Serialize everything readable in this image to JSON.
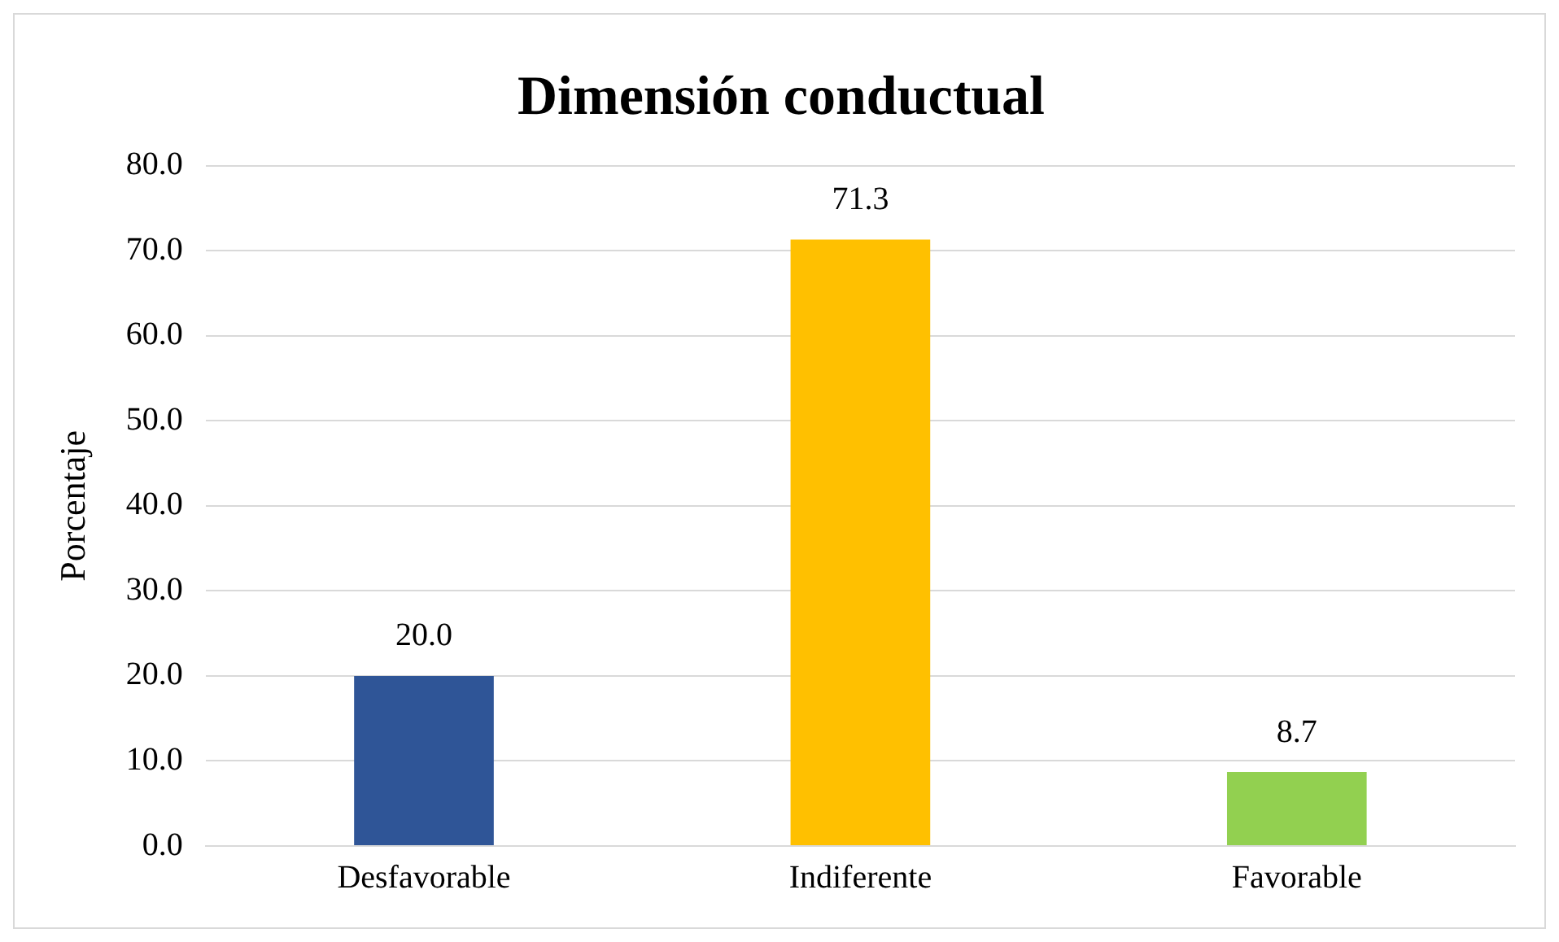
{
  "chart_data": {
    "type": "bar",
    "title": "Dimensión conductual",
    "ylabel": "Porcentaje",
    "categories": [
      "Desfavorable",
      "Indiferente",
      "Favorable"
    ],
    "values": [
      20.0,
      71.3,
      8.7
    ],
    "colors": [
      "#2f5597",
      "#ffc000",
      "#92d050"
    ],
    "value_labels": [
      "20.0",
      "71.3",
      "8.7"
    ],
    "ylim": [
      0,
      80
    ],
    "yticks": [
      {
        "value": 0,
        "label": "0.0"
      },
      {
        "value": 10,
        "label": "10.0"
      },
      {
        "value": 20,
        "label": "20.0"
      },
      {
        "value": 30,
        "label": "30.0"
      },
      {
        "value": 40,
        "label": "40.0"
      },
      {
        "value": 50,
        "label": "50.0"
      },
      {
        "value": 60,
        "label": "60.0"
      },
      {
        "value": 70,
        "label": "70.0"
      },
      {
        "value": 80,
        "label": "80.0"
      }
    ],
    "grid": "y",
    "legend": false
  }
}
